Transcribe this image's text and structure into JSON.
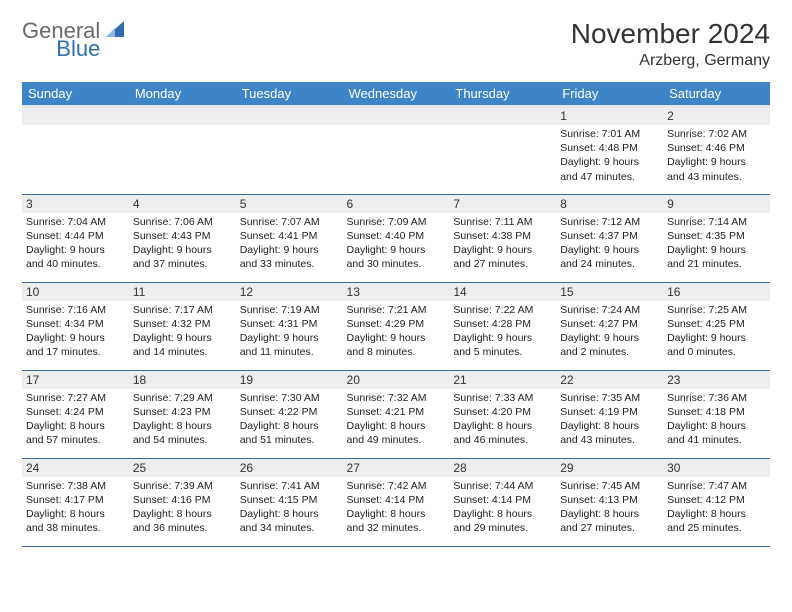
{
  "logo": {
    "text1": "General",
    "text2": "Blue"
  },
  "title": "November 2024",
  "subtitle": "Arzberg, Germany",
  "colors": {
    "header_bg": "#3d85c6",
    "header_fg": "#ffffff",
    "daynum_bg": "#ededed",
    "border": "#3d6a9a",
    "logo_accent": "#2f6fb0"
  },
  "weekdays": [
    "Sunday",
    "Monday",
    "Tuesday",
    "Wednesday",
    "Thursday",
    "Friday",
    "Saturday"
  ],
  "weeks": [
    [
      null,
      null,
      null,
      null,
      null,
      {
        "n": "1",
        "sr": "7:01 AM",
        "ss": "4:48 PM",
        "dh": "9",
        "dm": "47"
      },
      {
        "n": "2",
        "sr": "7:02 AM",
        "ss": "4:46 PM",
        "dh": "9",
        "dm": "43"
      }
    ],
    [
      {
        "n": "3",
        "sr": "7:04 AM",
        "ss": "4:44 PM",
        "dh": "9",
        "dm": "40"
      },
      {
        "n": "4",
        "sr": "7:06 AM",
        "ss": "4:43 PM",
        "dh": "9",
        "dm": "37"
      },
      {
        "n": "5",
        "sr": "7:07 AM",
        "ss": "4:41 PM",
        "dh": "9",
        "dm": "33"
      },
      {
        "n": "6",
        "sr": "7:09 AM",
        "ss": "4:40 PM",
        "dh": "9",
        "dm": "30"
      },
      {
        "n": "7",
        "sr": "7:11 AM",
        "ss": "4:38 PM",
        "dh": "9",
        "dm": "27"
      },
      {
        "n": "8",
        "sr": "7:12 AM",
        "ss": "4:37 PM",
        "dh": "9",
        "dm": "24"
      },
      {
        "n": "9",
        "sr": "7:14 AM",
        "ss": "4:35 PM",
        "dh": "9",
        "dm": "21"
      }
    ],
    [
      {
        "n": "10",
        "sr": "7:16 AM",
        "ss": "4:34 PM",
        "dh": "9",
        "dm": "17"
      },
      {
        "n": "11",
        "sr": "7:17 AM",
        "ss": "4:32 PM",
        "dh": "9",
        "dm": "14"
      },
      {
        "n": "12",
        "sr": "7:19 AM",
        "ss": "4:31 PM",
        "dh": "9",
        "dm": "11"
      },
      {
        "n": "13",
        "sr": "7:21 AM",
        "ss": "4:29 PM",
        "dh": "9",
        "dm": "8"
      },
      {
        "n": "14",
        "sr": "7:22 AM",
        "ss": "4:28 PM",
        "dh": "9",
        "dm": "5"
      },
      {
        "n": "15",
        "sr": "7:24 AM",
        "ss": "4:27 PM",
        "dh": "9",
        "dm": "2"
      },
      {
        "n": "16",
        "sr": "7:25 AM",
        "ss": "4:25 PM",
        "dh": "9",
        "dm": "0"
      }
    ],
    [
      {
        "n": "17",
        "sr": "7:27 AM",
        "ss": "4:24 PM",
        "dh": "8",
        "dm": "57"
      },
      {
        "n": "18",
        "sr": "7:29 AM",
        "ss": "4:23 PM",
        "dh": "8",
        "dm": "54"
      },
      {
        "n": "19",
        "sr": "7:30 AM",
        "ss": "4:22 PM",
        "dh": "8",
        "dm": "51"
      },
      {
        "n": "20",
        "sr": "7:32 AM",
        "ss": "4:21 PM",
        "dh": "8",
        "dm": "49"
      },
      {
        "n": "21",
        "sr": "7:33 AM",
        "ss": "4:20 PM",
        "dh": "8",
        "dm": "46"
      },
      {
        "n": "22",
        "sr": "7:35 AM",
        "ss": "4:19 PM",
        "dh": "8",
        "dm": "43"
      },
      {
        "n": "23",
        "sr": "7:36 AM",
        "ss": "4:18 PM",
        "dh": "8",
        "dm": "41"
      }
    ],
    [
      {
        "n": "24",
        "sr": "7:38 AM",
        "ss": "4:17 PM",
        "dh": "8",
        "dm": "38"
      },
      {
        "n": "25",
        "sr": "7:39 AM",
        "ss": "4:16 PM",
        "dh": "8",
        "dm": "36"
      },
      {
        "n": "26",
        "sr": "7:41 AM",
        "ss": "4:15 PM",
        "dh": "8",
        "dm": "34"
      },
      {
        "n": "27",
        "sr": "7:42 AM",
        "ss": "4:14 PM",
        "dh": "8",
        "dm": "32"
      },
      {
        "n": "28",
        "sr": "7:44 AM",
        "ss": "4:14 PM",
        "dh": "8",
        "dm": "29"
      },
      {
        "n": "29",
        "sr": "7:45 AM",
        "ss": "4:13 PM",
        "dh": "8",
        "dm": "27"
      },
      {
        "n": "30",
        "sr": "7:47 AM",
        "ss": "4:12 PM",
        "dh": "8",
        "dm": "25"
      }
    ]
  ]
}
